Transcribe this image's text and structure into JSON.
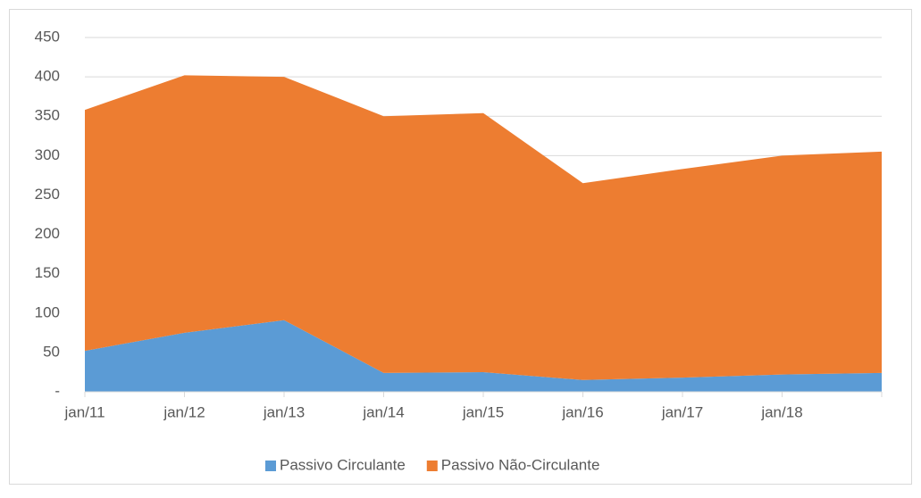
{
  "chart_data": {
    "type": "stacked_area",
    "categories": [
      "jan/11",
      "jan/12",
      "jan/13",
      "jan/14",
      "jan/15",
      "jan/16",
      "jan/17",
      "jan/18",
      null
    ],
    "series": [
      {
        "name": "Passivo Circulante",
        "color": "#5b9bd5",
        "values": [
          52,
          75,
          91,
          24,
          25,
          15,
          18,
          22,
          24
        ]
      },
      {
        "name": "Passivo Não-Circulante",
        "color": "#ed7d31",
        "values": [
          306,
          327,
          309,
          326,
          329,
          250,
          265,
          278,
          281
        ]
      }
    ],
    "ylim": [
      0,
      450
    ],
    "yticks": [
      {
        "value": 0,
        "label": "-"
      },
      50,
      100,
      150,
      200,
      250,
      300,
      350,
      400,
      450
    ],
    "grid": true,
    "legend": "bottom"
  }
}
